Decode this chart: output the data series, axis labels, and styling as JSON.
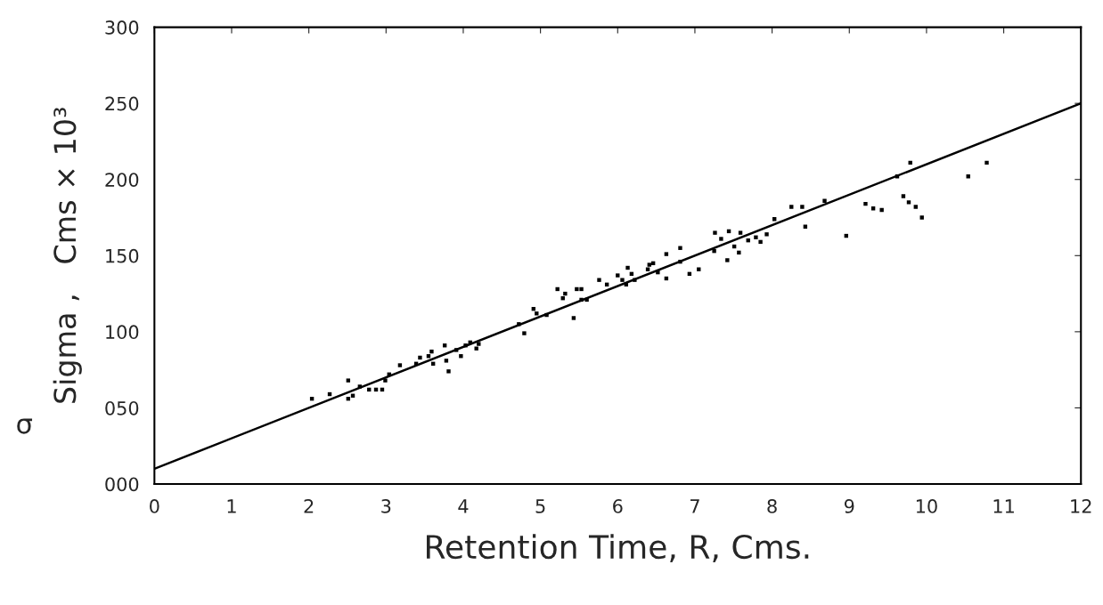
{
  "chart_data": {
    "type": "scatter",
    "xlabel": "Retention Time, R, Cms.",
    "ylabel": "Sigma ,   Cms × 10³",
    "annotations": [
      "σ"
    ],
    "xlim": [
      0,
      12
    ],
    "ylim": [
      0,
      300
    ],
    "xticks": [
      0,
      1,
      2,
      3,
      4,
      5,
      6,
      7,
      8,
      9,
      10,
      11,
      12
    ],
    "yticks": [
      {
        "value": 0,
        "label": "000"
      },
      {
        "value": 50,
        "label": "050"
      },
      100,
      150,
      200,
      250,
      300
    ],
    "grid": false,
    "legend": false,
    "series": [
      {
        "marker": "square",
        "color": "#000000",
        "x": [
          2.04,
          2.27,
          2.51,
          2.51,
          2.57,
          2.66,
          2.78,
          2.87,
          2.95,
          2.99,
          3.04,
          3.18,
          3.39,
          3.44,
          3.55,
          3.59,
          3.61,
          3.76,
          3.78,
          3.81,
          3.91,
          3.97,
          4.03,
          4.09,
          4.17,
          4.2,
          4.72,
          4.79,
          4.91,
          4.95,
          5.08,
          5.22,
          5.29,
          5.32,
          5.43,
          5.47,
          5.53,
          5.53,
          5.6,
          5.76,
          5.86,
          6.0,
          6.06,
          6.11,
          6.13,
          6.18,
          6.22,
          6.39,
          6.41,
          6.46,
          6.52,
          6.63,
          6.63,
          6.81,
          6.81,
          6.93,
          7.05,
          7.25,
          7.26,
          7.34,
          7.42,
          7.44,
          7.51,
          7.57,
          7.59,
          7.69,
          7.79,
          7.85,
          7.93,
          8.03,
          8.25,
          8.39,
          8.43,
          8.68,
          8.96,
          9.21,
          9.31,
          9.42,
          9.62,
          9.7,
          9.77,
          9.79,
          9.86,
          9.94,
          10.54,
          10.78
        ],
        "values": [
          56,
          59,
          68,
          56,
          58,
          64,
          62,
          62,
          62,
          68,
          72,
          78,
          79,
          83,
          84,
          87,
          79,
          91,
          81,
          74,
          88,
          84,
          91,
          93,
          89,
          92,
          105,
          99,
          115,
          112,
          111,
          128,
          122,
          125,
          109,
          128,
          128,
          121,
          121,
          134,
          131,
          137,
          134,
          131,
          142,
          138,
          134,
          141,
          144,
          145,
          139,
          151,
          135,
          155,
          146,
          138,
          141,
          153,
          165,
          161,
          147,
          166,
          156,
          152,
          165,
          160,
          162,
          159,
          164,
          174,
          182,
          182,
          169,
          186,
          163,
          184,
          181,
          180,
          202,
          189,
          185,
          211,
          182,
          175,
          202,
          211
        ]
      },
      {
        "type": "line",
        "color": "#000000",
        "x": [
          0,
          12
        ],
        "values": [
          10,
          250
        ]
      }
    ]
  }
}
